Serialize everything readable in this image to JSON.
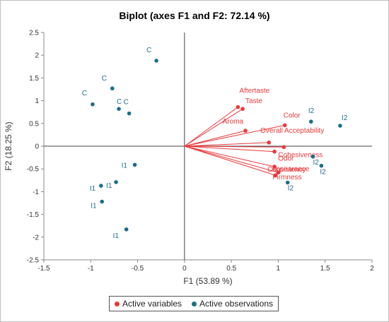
{
  "chart_data": {
    "type": "scatter",
    "title": "Biplot (axes F1 and F2: 72.14 %)",
    "xlabel": "F1 (53.89 %)",
    "ylabel": "F2 (18.25 %)",
    "xlim": [
      -1.5,
      2
    ],
    "ylim": [
      -2.5,
      2.5
    ],
    "xticks": [
      "-1.5",
      "-1",
      "-0.5",
      "0",
      "0.5",
      "1",
      "1.5",
      "2"
    ],
    "yticks": [
      "2.5",
      "2",
      "1.5",
      "1",
      "0.5",
      "0",
      "-0.5",
      "-1",
      "-1.5",
      "-2",
      "-2.5"
    ],
    "grid": false,
    "legend_position": "bottom",
    "series": [
      {
        "name": "Active variables",
        "color": "#e8393c",
        "style": "vectors-from-origin",
        "points": [
          {
            "label": "Aftertaste",
            "x": 0.57,
            "y": 0.86
          },
          {
            "label": "Taste",
            "x": 0.62,
            "y": 0.82
          },
          {
            "label": "Aroma",
            "x": 0.65,
            "y": 0.34
          },
          {
            "label": "Color",
            "x": 1.07,
            "y": 0.46
          },
          {
            "label": "Overall Acceptability",
            "x": 0.9,
            "y": 0.08
          },
          {
            "label": "Cohesiveness",
            "x": 1.06,
            "y": -0.02
          },
          {
            "label": "Odor",
            "x": 0.96,
            "y": -0.12
          },
          {
            "label": "Consistency",
            "x": 0.96,
            "y": -0.45
          },
          {
            "label": "Appearance",
            "x": 1.0,
            "y": -0.58
          },
          {
            "label": "Firmness",
            "x": 0.97,
            "y": -0.64
          }
        ]
      },
      {
        "name": "Active observations",
        "color": "#1a6e88",
        "style": "points",
        "points": [
          {
            "label": "C",
            "x": -0.3,
            "y": 1.88
          },
          {
            "label": "C",
            "x": -0.77,
            "y": 1.27
          },
          {
            "label": "C",
            "x": -0.98,
            "y": 0.92
          },
          {
            "label": "C",
            "x": -0.7,
            "y": 0.82
          },
          {
            "label": "C",
            "x": -0.59,
            "y": 0.72
          },
          {
            "label": "I1",
            "x": -0.53,
            "y": -0.41
          },
          {
            "label": "I1",
            "x": -0.73,
            "y": -0.79
          },
          {
            "label": "I1",
            "x": -0.89,
            "y": -0.87
          },
          {
            "label": "I1",
            "x": -0.88,
            "y": -1.22
          },
          {
            "label": "I1",
            "x": -0.62,
            "y": -1.83
          },
          {
            "label": "I2",
            "x": 1.35,
            "y": 0.54
          },
          {
            "label": "I2",
            "x": 1.66,
            "y": 0.45
          },
          {
            "label": "I2",
            "x": 1.37,
            "y": -0.23
          },
          {
            "label": "I2",
            "x": 1.46,
            "y": -0.43
          },
          {
            "label": "I2",
            "x": 1.1,
            "y": -0.8
          }
        ]
      }
    ]
  }
}
